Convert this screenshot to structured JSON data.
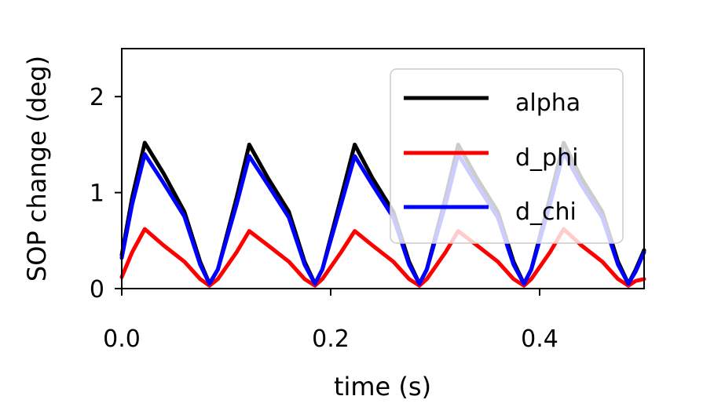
{
  "chart_data": {
    "type": "line",
    "title": "",
    "xlabel": "time (s)",
    "ylabel": "SOP change (deg)",
    "xlim": [
      0.0,
      0.5
    ],
    "ylim": [
      0,
      2.5
    ],
    "xticks": [
      0.0,
      0.2,
      0.4
    ],
    "xtick_labels": [
      "0.0",
      "0.2",
      "0.4"
    ],
    "yticks": [
      0,
      1,
      2
    ],
    "ytick_labels": [
      "0",
      "1",
      "2"
    ],
    "grid": false,
    "legend_position": "top-right",
    "period": 0.1,
    "series": [
      {
        "name": "alpha",
        "color": "#000000",
        "x": [
          0.0,
          0.01,
          0.022,
          0.04,
          0.06,
          0.075,
          0.084,
          0.092,
          0.11,
          0.122,
          0.14,
          0.16,
          0.175,
          0.185,
          0.192,
          0.21,
          0.223,
          0.24,
          0.26,
          0.275,
          0.285,
          0.292,
          0.31,
          0.322,
          0.34,
          0.36,
          0.375,
          0.385,
          0.392,
          0.41,
          0.423,
          0.44,
          0.46,
          0.475,
          0.485,
          0.492,
          0.5
        ],
        "values": [
          0.35,
          0.95,
          1.52,
          1.2,
          0.8,
          0.28,
          0.05,
          0.2,
          0.95,
          1.5,
          1.15,
          0.8,
          0.28,
          0.05,
          0.2,
          0.95,
          1.5,
          1.15,
          0.8,
          0.28,
          0.05,
          0.2,
          0.95,
          1.5,
          1.15,
          0.8,
          0.28,
          0.05,
          0.2,
          0.95,
          1.52,
          1.15,
          0.8,
          0.28,
          0.05,
          0.2,
          0.4
        ]
      },
      {
        "name": "d_phi",
        "color": "#ff0000",
        "x": [
          0.0,
          0.01,
          0.022,
          0.04,
          0.06,
          0.075,
          0.084,
          0.092,
          0.11,
          0.122,
          0.14,
          0.16,
          0.175,
          0.185,
          0.192,
          0.21,
          0.223,
          0.24,
          0.26,
          0.275,
          0.285,
          0.292,
          0.31,
          0.322,
          0.34,
          0.36,
          0.375,
          0.385,
          0.392,
          0.41,
          0.423,
          0.44,
          0.46,
          0.475,
          0.485,
          0.492,
          0.5
        ],
        "values": [
          0.12,
          0.38,
          0.62,
          0.45,
          0.28,
          0.1,
          0.03,
          0.1,
          0.38,
          0.6,
          0.45,
          0.28,
          0.1,
          0.03,
          0.1,
          0.38,
          0.6,
          0.45,
          0.28,
          0.1,
          0.03,
          0.1,
          0.38,
          0.6,
          0.45,
          0.28,
          0.1,
          0.03,
          0.1,
          0.38,
          0.62,
          0.45,
          0.28,
          0.1,
          0.03,
          0.08,
          0.1
        ]
      },
      {
        "name": "d_chi",
        "color": "#0000ff",
        "x": [
          0.0,
          0.01,
          0.022,
          0.04,
          0.06,
          0.075,
          0.084,
          0.092,
          0.11,
          0.122,
          0.14,
          0.16,
          0.175,
          0.185,
          0.192,
          0.21,
          0.223,
          0.24,
          0.26,
          0.275,
          0.285,
          0.292,
          0.31,
          0.322,
          0.34,
          0.36,
          0.375,
          0.385,
          0.392,
          0.41,
          0.423,
          0.44,
          0.46,
          0.475,
          0.485,
          0.492,
          0.5
        ],
        "values": [
          0.32,
          0.88,
          1.4,
          1.1,
          0.75,
          0.25,
          0.05,
          0.2,
          0.88,
          1.38,
          1.08,
          0.74,
          0.25,
          0.05,
          0.2,
          0.88,
          1.38,
          1.08,
          0.74,
          0.25,
          0.05,
          0.2,
          0.88,
          1.4,
          1.08,
          0.74,
          0.25,
          0.05,
          0.2,
          0.88,
          1.42,
          1.08,
          0.74,
          0.25,
          0.05,
          0.18,
          0.38
        ]
      }
    ]
  }
}
